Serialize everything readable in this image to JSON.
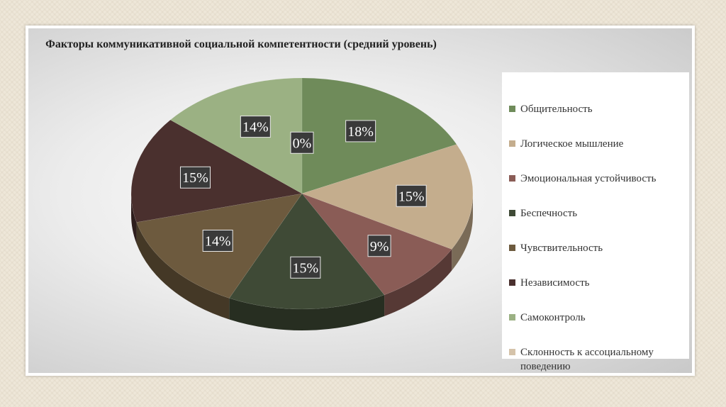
{
  "chart_data": {
    "type": "pie",
    "title": "Факторы коммуникативной социальной компетентности (средний уровень)",
    "legend_position": "right",
    "labels": [
      "Общительность",
      "Логическое мышление",
      "Эмоциональная устойчивость",
      "Беспечность",
      "Чувствительность",
      "Независимость",
      "Самоконтроль",
      "Склонность к ассоциальному поведению"
    ],
    "values": [
      18,
      15,
      9,
      15,
      14,
      15,
      14,
      0
    ],
    "data_labels": [
      "18%",
      "15%",
      "9%",
      "15%",
      "14%",
      "15%",
      "14%",
      "0%"
    ],
    "colors": [
      "#6f8b5a",
      "#c4ad8d",
      "#8a5c56",
      "#3f4a36",
      "#6d5a3e",
      "#4a302e",
      "#9bb183",
      "#d5c3aa"
    ]
  }
}
